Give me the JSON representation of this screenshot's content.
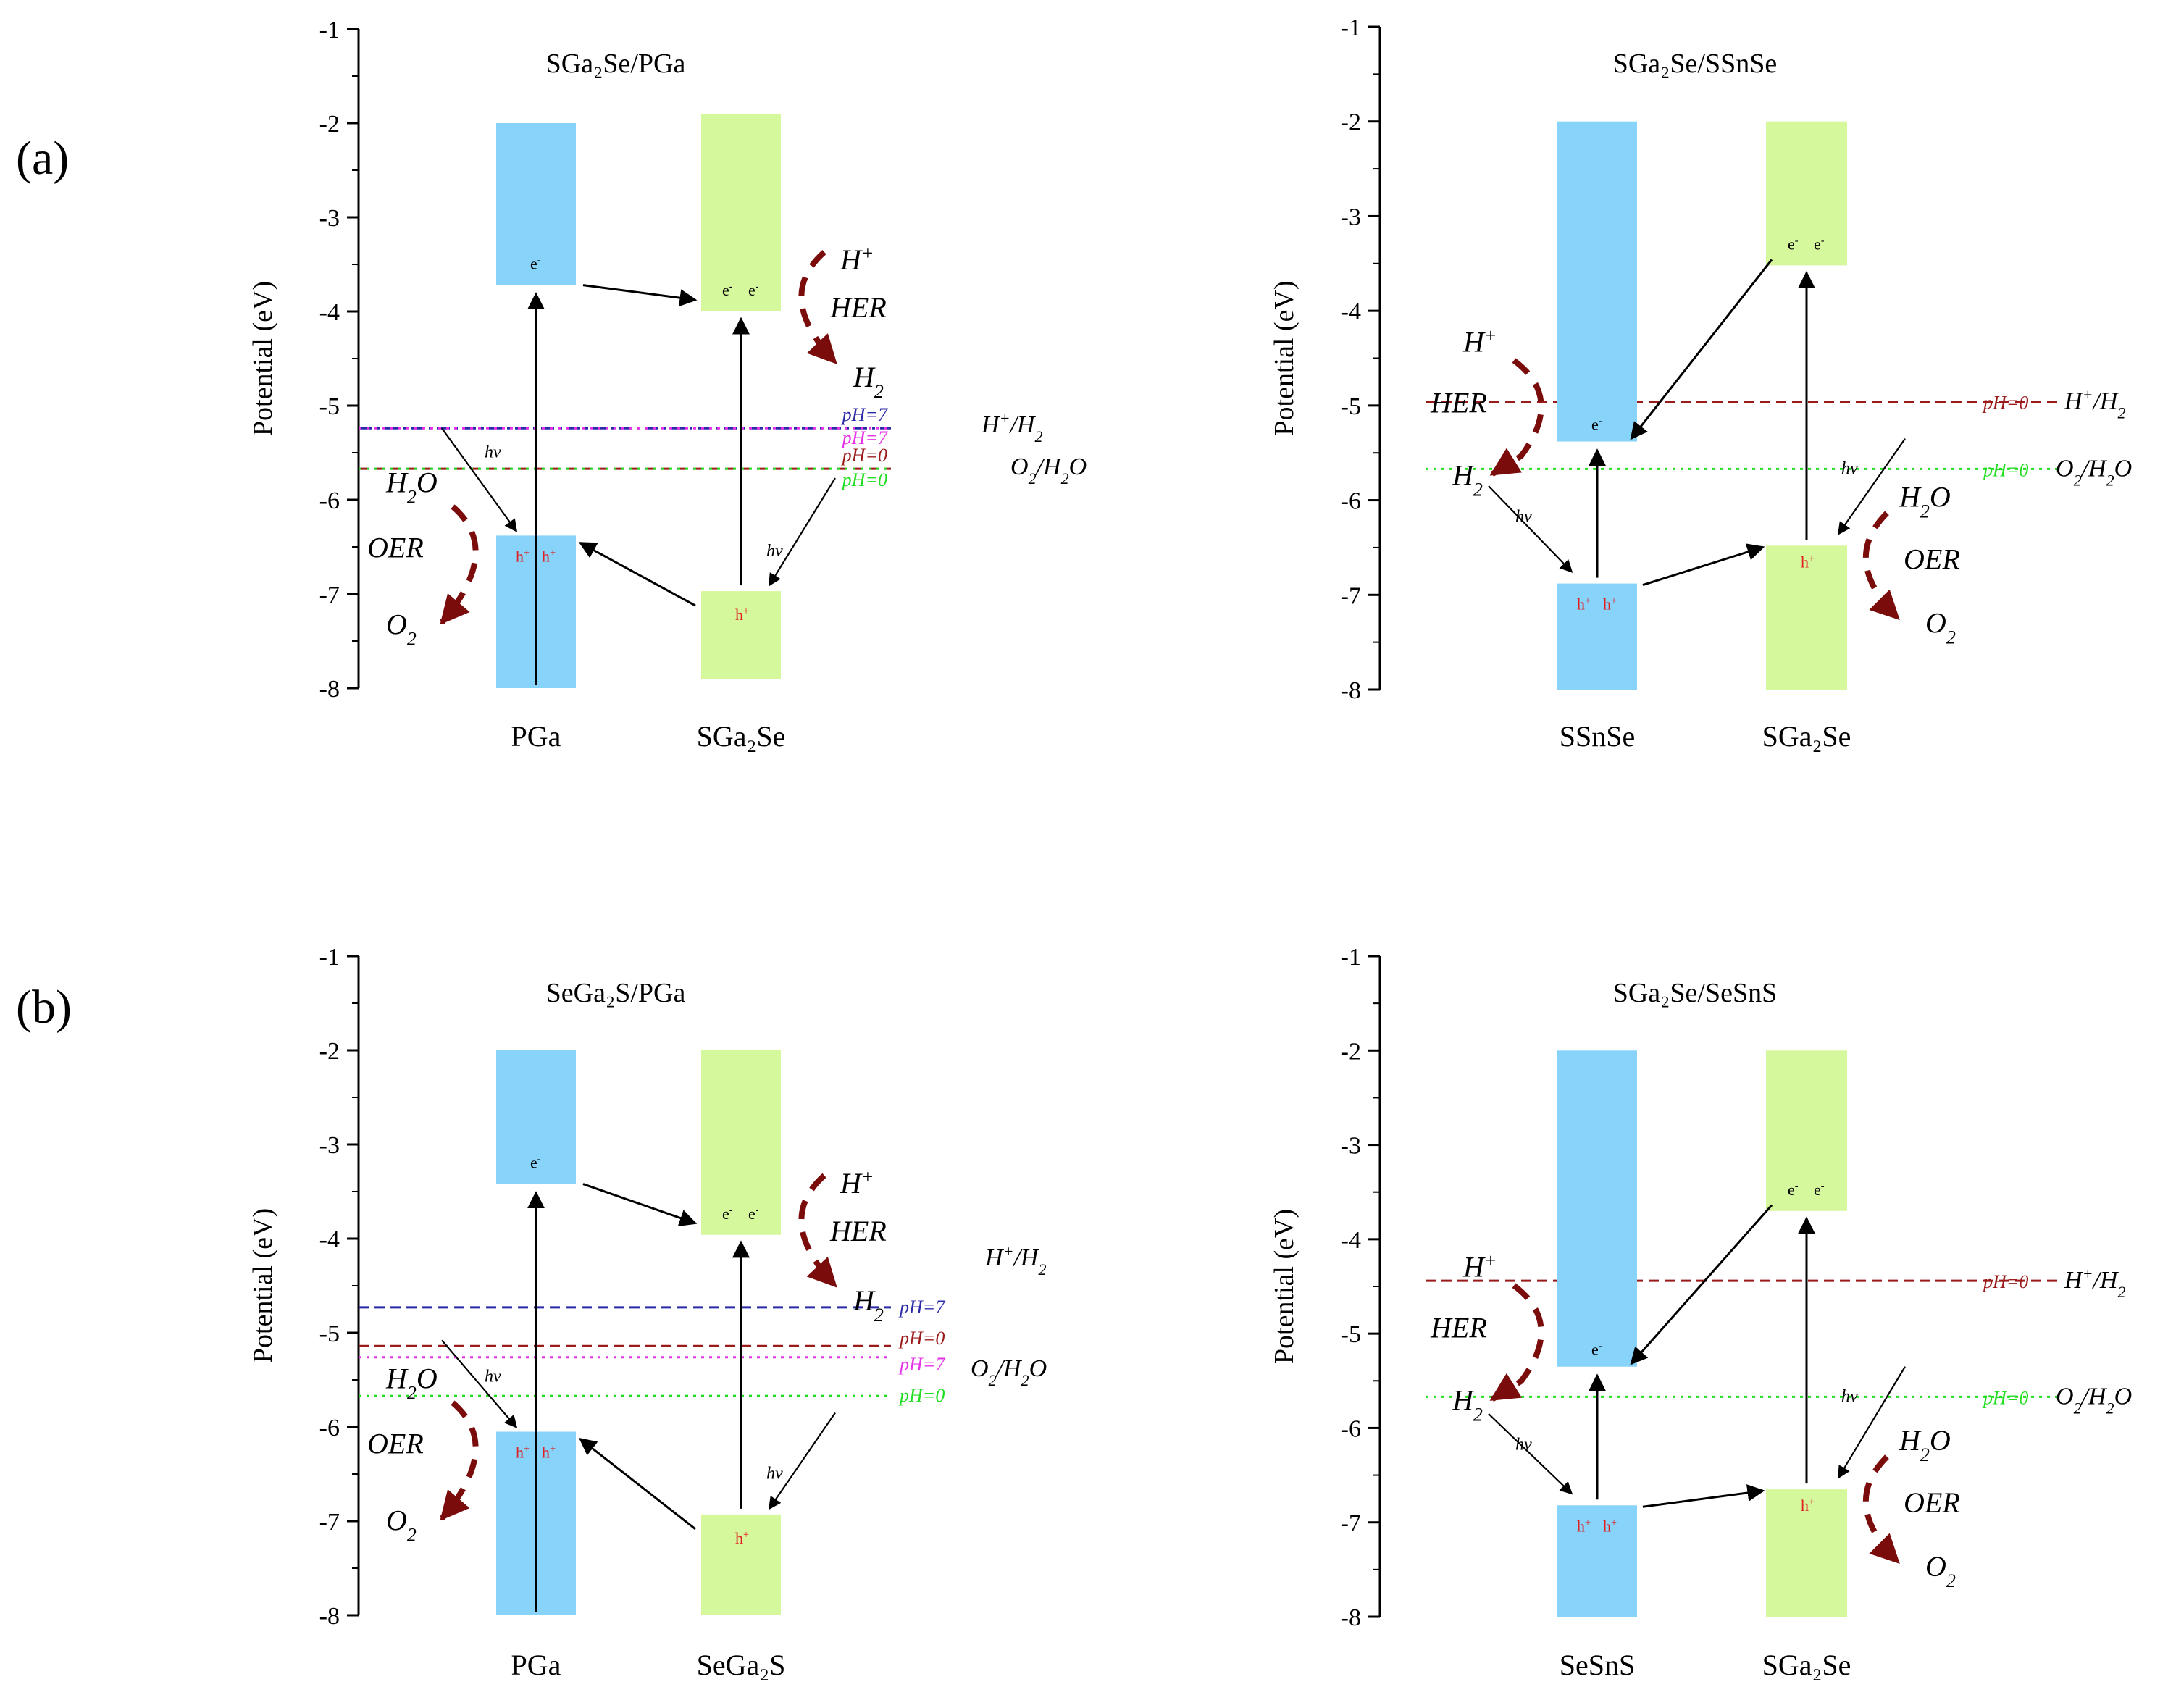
{
  "panel_letters": [
    "(a)",
    "(b)"
  ],
  "axis": {
    "title": "Potential (eV)",
    "ticks": [
      -1,
      -2,
      -3,
      -4,
      -5,
      -6,
      -7,
      -8
    ],
    "range": [
      -8,
      -1
    ]
  },
  "colors": {
    "blue_band": "#87d3fa",
    "green_band": "#d6f89c",
    "reaction_arrow": "#7a0c0c",
    "ph7_blue": "#2b2ba8",
    "ph7_magenta": "#e632e6",
    "ph0_darkred": "#9b1b1b",
    "ph0_green": "#22dd22"
  },
  "labels": {
    "electron": "e",
    "hole": "h",
    "hv": "hν",
    "HER": "HER",
    "OER": "OER",
    "H_plus": "H",
    "H2": "H",
    "O2": "O",
    "H2O": "H",
    "pot_h": "H",
    "pot_o": "O",
    "ph7": "pH=7",
    "ph0": "pH=0"
  },
  "panels": [
    {
      "id": "a1",
      "title": "SGa₂Se/PGa",
      "materials": [
        {
          "name": "PGa",
          "cbm": -3.72,
          "vbm": -6.38,
          "color": "blue"
        },
        {
          "name": "SGa₂Se",
          "cbm": -4.0,
          "vbm": -6.97,
          "color": "green"
        }
      ],
      "levels": [
        {
          "label": "pH=7",
          "potential": -5.24,
          "color": "#2b2ba8",
          "style": "dashdot"
        },
        {
          "label": "pH=7",
          "potential": -5.24,
          "color": "#e632e6",
          "style": "dot"
        },
        {
          "label": "pH=0",
          "potential": -5.67,
          "color": "#9b1b1b",
          "style": "dash"
        },
        {
          "label": "pH=0",
          "potential": -5.67,
          "color": "#22dd22",
          "style": "dot"
        }
      ]
    },
    {
      "id": "a2",
      "title": "SGa₂Se/SSnSe",
      "materials": [
        {
          "name": "SSnSe",
          "cbm": -5.38,
          "vbm": -6.88,
          "color": "blue"
        },
        {
          "name": "SGa₂Se",
          "cbm": -3.52,
          "vbm": -6.48,
          "color": "green"
        }
      ],
      "levels": [
        {
          "label": "pH=0",
          "potential": -4.96,
          "color": "#9b1b1b",
          "style": "dash"
        },
        {
          "label": "pH=0",
          "potential": -5.67,
          "color": "#22dd22",
          "style": "dot"
        }
      ]
    },
    {
      "id": "b1",
      "title": "SeGa₂S/PGa",
      "materials": [
        {
          "name": "PGa",
          "cbm": -3.42,
          "vbm": -6.05,
          "color": "blue"
        },
        {
          "name": "SeGa₂S",
          "cbm": -3.96,
          "vbm": -6.93,
          "color": "green"
        }
      ],
      "levels": [
        {
          "label": "pH=7",
          "potential": -4.73,
          "color": "#2b2ba8",
          "style": "dash"
        },
        {
          "label": "pH=0",
          "potential": -5.14,
          "color": "#9b1b1b",
          "style": "dash"
        },
        {
          "label": "pH=7",
          "potential": -5.26,
          "color": "#e632e6",
          "style": "dot"
        },
        {
          "label": "pH=0",
          "potential": -5.67,
          "color": "#22dd22",
          "style": "dot"
        }
      ]
    },
    {
      "id": "b2",
      "title": "SGa₂Se/SeSnS",
      "materials": [
        {
          "name": "SeSnS",
          "cbm": -5.35,
          "vbm": -6.82,
          "color": "blue"
        },
        {
          "name": "SGa₂Se",
          "cbm": -3.7,
          "vbm": -6.65,
          "color": "green"
        }
      ],
      "levels": [
        {
          "label": "pH=0",
          "potential": -4.44,
          "color": "#9b1b1b",
          "style": "dash"
        },
        {
          "label": "pH=0",
          "potential": -5.67,
          "color": "#22dd22",
          "style": "dot"
        }
      ]
    }
  ]
}
